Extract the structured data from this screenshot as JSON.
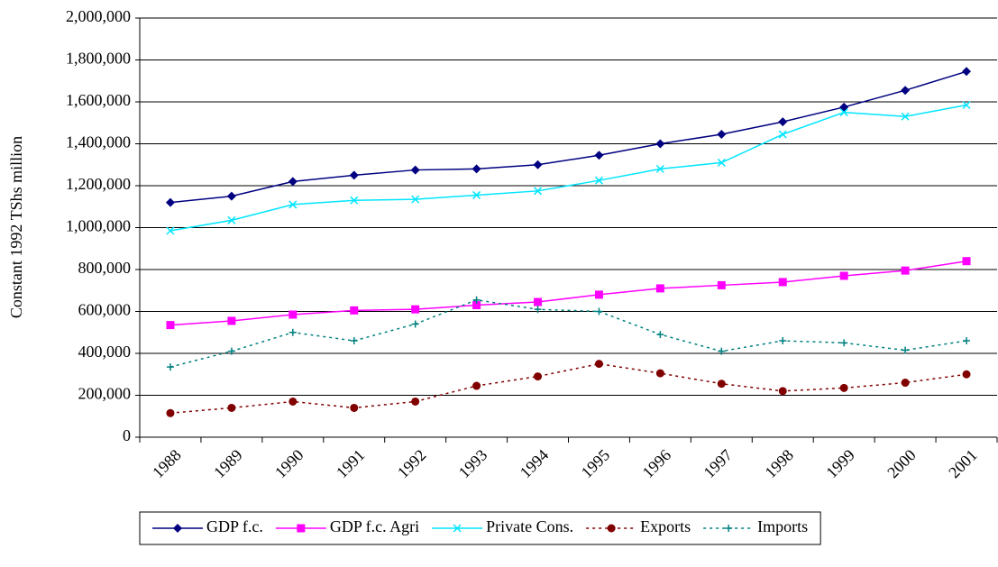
{
  "chart_data": {
    "type": "line",
    "y_label": "Constant 1992 TShs million",
    "categories": [
      "1988",
      "1989",
      "1990",
      "1991",
      "1992",
      "1993",
      "1994",
      "1995",
      "1996",
      "1997",
      "1998",
      "1999",
      "2000",
      "2001"
    ],
    "series": [
      {
        "name": "GDP f.c.",
        "color": "#000080",
        "marker": "diamond",
        "dashed": false,
        "values": [
          1120000,
          1150000,
          1220000,
          1250000,
          1275000,
          1280000,
          1300000,
          1345000,
          1400000,
          1445000,
          1505000,
          1575000,
          1655000,
          1745000
        ]
      },
      {
        "name": "GDP f.c. Agri",
        "color": "#ff00ff",
        "marker": "square",
        "dashed": false,
        "values": [
          535000,
          555000,
          585000,
          605000,
          610000,
          630000,
          645000,
          680000,
          710000,
          725000,
          740000,
          770000,
          795000,
          840000
        ]
      },
      {
        "name": "Private Cons.",
        "color": "#00e5ff",
        "marker": "x",
        "dashed": false,
        "values": [
          985000,
          1035000,
          1110000,
          1130000,
          1135000,
          1155000,
          1175000,
          1225000,
          1280000,
          1310000,
          1445000,
          1550000,
          1530000,
          1585000
        ]
      },
      {
        "name": "Exports",
        "color": "#800000",
        "marker": "circle",
        "dashed": true,
        "values": [
          115000,
          140000,
          170000,
          140000,
          170000,
          245000,
          290000,
          350000,
          305000,
          255000,
          220000,
          235000,
          260000,
          300000
        ]
      },
      {
        "name": "Imports",
        "color": "#008080",
        "marker": "plus",
        "dashed": true,
        "values": [
          335000,
          410000,
          500000,
          460000,
          540000,
          655000,
          610000,
          600000,
          490000,
          410000,
          460000,
          450000,
          415000,
          460000
        ]
      }
    ],
    "ylim": [
      0,
      2000000
    ],
    "yticks": [
      0,
      {
        "value": 200000,
        "label": "200,000"
      },
      {
        "value": 400000,
        "label": "400,000"
      },
      {
        "value": 600000,
        "label": "600,000"
      },
      {
        "value": 800000,
        "label": "800,000"
      },
      {
        "value": 1000000,
        "label": "1,000,000"
      },
      {
        "value": 1200000,
        "label": "1,200,000"
      },
      {
        "value": 1400000,
        "label": "1,400,000"
      },
      {
        "value": 1600000,
        "label": "1,600,000"
      },
      {
        "value": 1800000,
        "label": "1,800,000"
      },
      {
        "value": 2000000,
        "label": "2,000,000"
      }
    ],
    "grid": true,
    "legend": "bottom"
  }
}
